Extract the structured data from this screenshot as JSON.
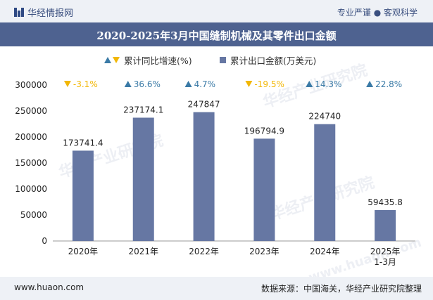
{
  "header": {
    "brand": "华经情报网",
    "tagline": "专业严谨 ● 客观科学"
  },
  "title": "2020-2025年3月中国缝制机械及其零件出口金额",
  "legend": {
    "growth_label": "累计同比增速(%)",
    "amount_label": "累计出口金额(万美元)"
  },
  "colors": {
    "bar": "#6677a3",
    "up": "#3a7aa6",
    "down": "#f2b705",
    "title_band": "#4e6290",
    "axis_text": "#222222"
  },
  "chart_data": {
    "type": "bar",
    "categories": [
      "2020年",
      "2021年",
      "2022年",
      "2023年",
      "2024年",
      "2025年\n1-3月"
    ],
    "series": [
      {
        "name": "累计出口金额(万美元)",
        "values": [
          173741.4,
          237174.1,
          247847,
          196794.9,
          224740,
          59435.8
        ]
      },
      {
        "name": "累计同比增速(%)",
        "values": [
          -3.1,
          36.6,
          4.7,
          -19.5,
          14.3,
          22.8
        ]
      }
    ],
    "value_labels": [
      "173741.4",
      "237174.1",
      "247847",
      "196794.9",
      "224740",
      "59435.8"
    ],
    "growth_labels": [
      "-3.1%",
      "36.6%",
      "4.7%",
      "-19.5%",
      "14.3%",
      "22.8%"
    ],
    "ylim": [
      0,
      300000
    ],
    "yticks": [
      "0",
      "50000",
      "100000",
      "150000",
      "200000",
      "250000",
      "300000"
    ],
    "ytick_values": [
      0,
      50000,
      100000,
      150000,
      200000,
      250000,
      300000
    ]
  },
  "footer": {
    "website": "www.huaon.com",
    "source": "数据来源：中国海关，华经产业研究院整理"
  },
  "watermark": {
    "name": "华经产业研究院",
    "url": "www.huaon.com"
  }
}
